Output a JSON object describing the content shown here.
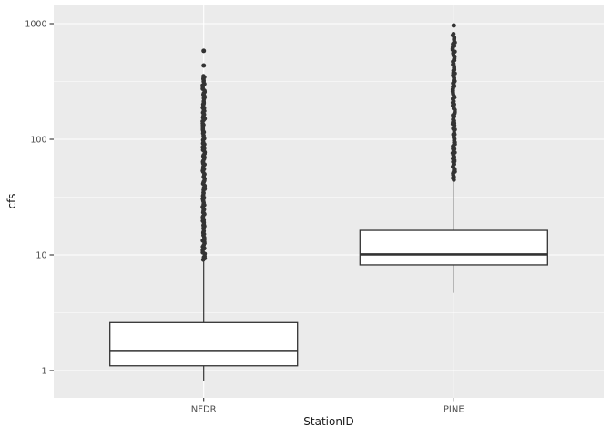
{
  "chart_data": {
    "type": "boxplot",
    "title": "",
    "xlabel": "StationID",
    "ylabel": "cfs",
    "y_scale": "log10",
    "ylim": [
      0.58,
      1480
    ],
    "y_ticks": [
      1,
      10,
      100,
      1000
    ],
    "y_tick_labels": [
      "1",
      "10",
      "100",
      "1000"
    ],
    "y_minor_ticks": [
      3.1623,
      31.623,
      316.23
    ],
    "grid": "on",
    "legend": "none",
    "categories": [
      "NFDR",
      "PINE"
    ],
    "series": [
      {
        "name": "NFDR",
        "whisker_low": 0.82,
        "q1": 1.1,
        "median": 1.48,
        "q3": 2.6,
        "whisker_high": 8.8,
        "outlier_column": {
          "from": 9.1,
          "to": 356,
          "count": 140
        },
        "outliers_isolated": [
          434,
          581
        ]
      },
      {
        "name": "PINE",
        "whisker_low": 4.7,
        "q1": 8.2,
        "median": 10.1,
        "q3": 16.3,
        "whisker_high": 44.2,
        "outlier_column": {
          "from": 45,
          "to": 805,
          "count": 112
        },
        "outliers_isolated": [
          965
        ]
      }
    ],
    "colors": {
      "panel_bg": "#EBEBEB",
      "grid": "#FFFFFF",
      "box_stroke": "#333333",
      "box_fill": "#FFFFFF",
      "outlier": "#333333",
      "tick_mark": "#333333",
      "tick_label": "#4D4D4D",
      "axis_title": "#1A1A1A"
    }
  }
}
